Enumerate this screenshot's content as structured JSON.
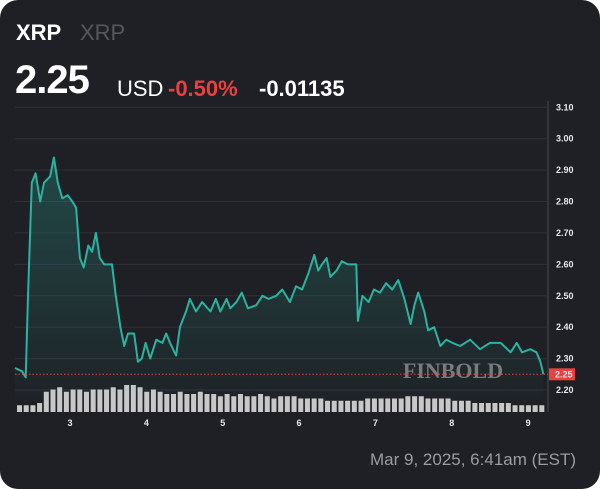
{
  "header": {
    "symbol": "XRP",
    "name": "XRP",
    "price": "2.25",
    "currency": "USD",
    "change_pct": "-0.50%",
    "change_abs": "-0.01135",
    "change_color": "#e8413f"
  },
  "timestamp": "Mar 9, 2025, 6:41am (EST)",
  "watermark": "FINBOLD",
  "chart_data": {
    "type": "area",
    "title": "",
    "xlabel": "",
    "ylabel": "",
    "x_ticks": [
      "3",
      "4",
      "5",
      "6",
      "7",
      "8",
      "9"
    ],
    "y_ticks": [
      "2.20",
      "2.30",
      "2.40",
      "2.50",
      "2.60",
      "2.70",
      "2.80",
      "2.90",
      "3.00",
      "3.10"
    ],
    "xlim": [
      2.28,
      9.26
    ],
    "ylim": [
      2.165,
      3.12
    ],
    "grid": true,
    "line_color": "#2bb3a0",
    "last_price_label": "2.25",
    "last_price": 2.25,
    "last_price_color": "#e8413f",
    "series": [
      {
        "x": [
          2.28,
          2.37,
          2.42,
          2.45,
          2.5,
          2.55,
          2.61,
          2.66,
          2.74,
          2.79,
          2.84,
          2.9,
          2.97,
          3.03,
          3.08,
          3.13,
          3.18,
          3.24,
          3.29,
          3.34,
          3.39,
          3.45,
          3.55,
          3.6,
          3.66,
          3.71,
          3.76,
          3.84,
          3.89,
          3.94,
          3.99,
          4.05,
          4.13,
          4.21,
          4.26,
          4.31,
          4.39,
          4.44,
          4.52,
          4.57,
          4.65,
          4.73,
          4.84,
          4.91,
          4.97,
          5.05,
          5.1,
          5.18,
          5.25,
          5.33,
          5.44,
          5.52,
          5.6,
          5.7,
          5.78,
          5.88,
          5.96,
          6.04,
          6.12,
          6.2,
          6.25,
          6.3,
          6.36,
          6.41,
          6.49,
          6.56,
          6.64,
          6.75,
          6.77,
          6.83,
          6.91,
          6.98,
          7.06,
          7.14,
          7.22,
          7.3,
          7.38,
          7.46,
          7.51,
          7.56,
          7.64,
          7.69,
          7.77,
          7.85,
          7.93,
          8.01,
          8.11,
          8.24,
          8.37,
          8.5,
          8.64,
          8.77,
          8.85,
          8.92,
          9.03,
          9.11,
          9.16,
          9.2
        ],
        "y": [
          2.27,
          2.26,
          2.24,
          2.5,
          2.86,
          2.89,
          2.8,
          2.86,
          2.88,
          2.94,
          2.86,
          2.81,
          2.82,
          2.8,
          2.78,
          2.62,
          2.59,
          2.66,
          2.64,
          2.7,
          2.62,
          2.6,
          2.6,
          2.5,
          2.4,
          2.34,
          2.38,
          2.38,
          2.29,
          2.3,
          2.35,
          2.3,
          2.36,
          2.35,
          2.38,
          2.35,
          2.31,
          2.4,
          2.45,
          2.49,
          2.45,
          2.48,
          2.45,
          2.49,
          2.45,
          2.49,
          2.46,
          2.48,
          2.51,
          2.46,
          2.47,
          2.5,
          2.49,
          2.5,
          2.52,
          2.48,
          2.53,
          2.52,
          2.57,
          2.63,
          2.58,
          2.6,
          2.62,
          2.56,
          2.58,
          2.61,
          2.6,
          2.6,
          2.42,
          2.5,
          2.48,
          2.52,
          2.51,
          2.54,
          2.52,
          2.55,
          2.49,
          2.41,
          2.47,
          2.51,
          2.45,
          2.39,
          2.4,
          2.34,
          2.36,
          2.35,
          2.34,
          2.36,
          2.33,
          2.35,
          2.35,
          2.32,
          2.35,
          2.32,
          2.33,
          2.32,
          2.29,
          2.25
        ]
      }
    ],
    "volume": [
      3,
      3,
      3,
      4,
      9,
      10,
      11,
      9,
      10,
      10,
      9,
      10,
      10,
      10,
      11,
      10,
      12,
      12,
      11,
      9,
      10,
      9,
      8,
      8,
      9,
      8,
      8,
      9,
      8,
      8,
      7,
      8,
      7,
      8,
      7,
      7,
      8,
      7,
      6,
      7,
      7,
      7,
      6,
      6,
      6,
      6,
      5,
      5,
      5,
      5,
      5,
      5,
      6,
      6,
      6,
      6,
      6,
      6,
      7,
      7,
      7,
      6,
      6,
      6,
      6,
      5,
      5,
      5,
      4,
      4,
      4,
      4,
      4,
      4,
      3,
      3,
      3,
      3,
      3
    ]
  }
}
